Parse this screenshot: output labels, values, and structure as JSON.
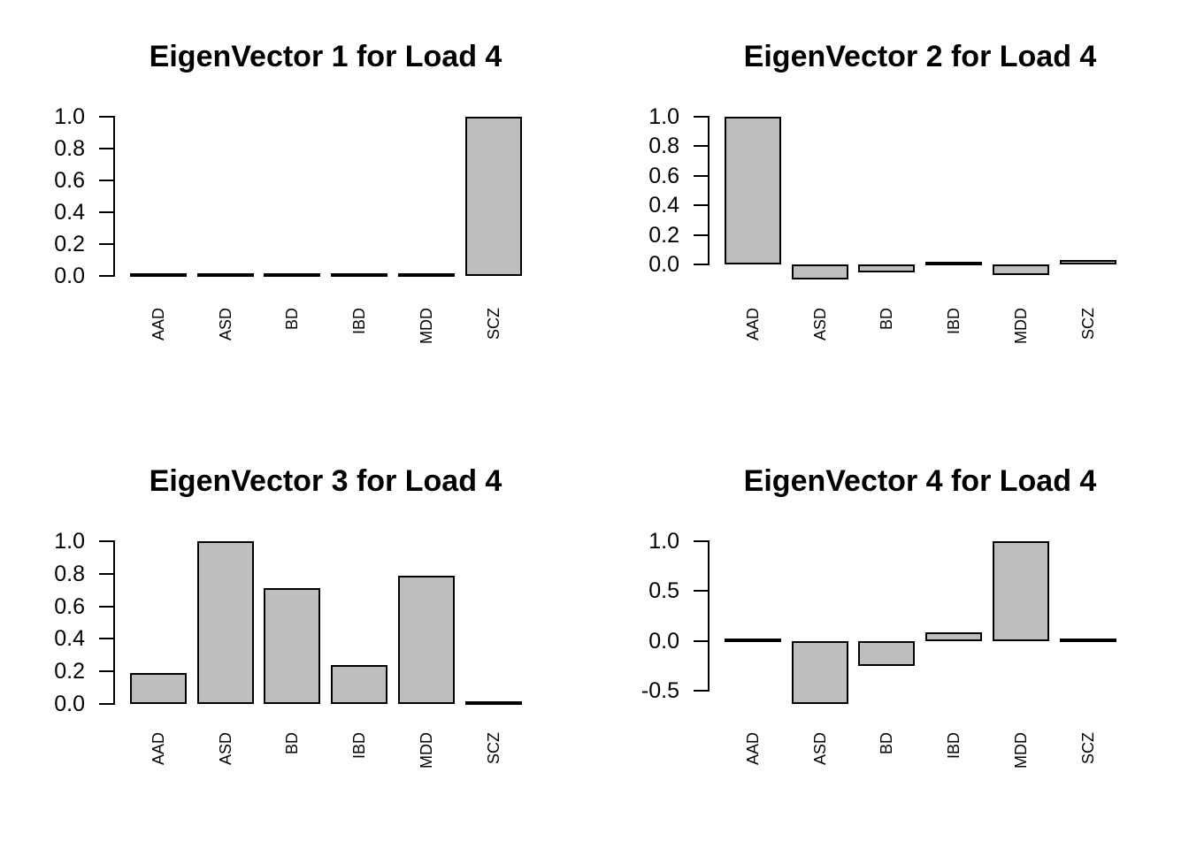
{
  "window": {
    "background": "#FFFFFF",
    "line_color": "#000000"
  },
  "chart_data": [
    {
      "type": "bar",
      "title": "EigenVector 1 for Load 4",
      "categories": [
        "AAD",
        "ASD",
        "BD",
        "IBD",
        "MDD",
        "SCZ"
      ],
      "values": [
        -0.02,
        0.0,
        0.0,
        0.0,
        0.0,
        1.0
      ],
      "yticks": [
        0.0,
        0.2,
        0.4,
        0.6,
        0.8,
        1.0
      ],
      "ytick_labels": [
        "0.0",
        "0.2",
        "0.4",
        "0.6",
        "0.8",
        "1.0"
      ],
      "ylim": [
        -0.02,
        1.0
      ],
      "xlabel": "",
      "ylabel": "",
      "grid": false,
      "legend": null,
      "bar_fill": "#BEBEBE",
      "bar_border": "#000000"
    },
    {
      "type": "bar",
      "title": "EigenVector 2 for Load 4",
      "categories": [
        "AAD",
        "ASD",
        "BD",
        "IBD",
        "MDD",
        "SCZ"
      ],
      "values": [
        1.0,
        -0.1,
        -0.05,
        -0.01,
        -0.07,
        0.03
      ],
      "yticks": [
        0.0,
        0.2,
        0.4,
        0.6,
        0.8,
        1.0
      ],
      "ytick_labels": [
        "0.0",
        "0.2",
        "0.4",
        "0.6",
        "0.8",
        "1.0"
      ],
      "ylim": [
        -0.1,
        1.0
      ],
      "xlabel": "",
      "ylabel": "",
      "grid": false,
      "legend": null,
      "bar_fill": "#BEBEBE",
      "bar_border": "#000000"
    },
    {
      "type": "bar",
      "title": "EigenVector 3 for Load 4",
      "categories": [
        "AAD",
        "ASD",
        "BD",
        "IBD",
        "MDD",
        "SCZ"
      ],
      "values": [
        0.19,
        1.0,
        0.71,
        0.24,
        0.79,
        0.0
      ],
      "yticks": [
        0.0,
        0.2,
        0.4,
        0.6,
        0.8,
        1.0
      ],
      "ytick_labels": [
        "0.0",
        "0.2",
        "0.4",
        "0.6",
        "0.8",
        "1.0"
      ],
      "ylim": [
        0.0,
        1.0
      ],
      "xlabel": "",
      "ylabel": "",
      "grid": false,
      "legend": null,
      "bar_fill": "#BEBEBE",
      "bar_border": "#000000"
    },
    {
      "type": "bar",
      "title": "EigenVector 4 for Load 4",
      "categories": [
        "AAD",
        "ASD",
        "BD",
        "IBD",
        "MDD",
        "SCZ"
      ],
      "values": [
        0.0,
        -0.63,
        -0.25,
        0.09,
        1.0,
        0.0
      ],
      "yticks": [
        -0.5,
        0.0,
        0.5,
        1.0
      ],
      "ytick_labels": [
        "-0.5",
        "0.0",
        "0.5",
        "1.0"
      ],
      "ylim": [
        -0.63,
        1.0
      ],
      "xlabel": "",
      "ylabel": "",
      "grid": false,
      "legend": null,
      "bar_fill": "#BEBEBE",
      "bar_border": "#000000"
    }
  ]
}
